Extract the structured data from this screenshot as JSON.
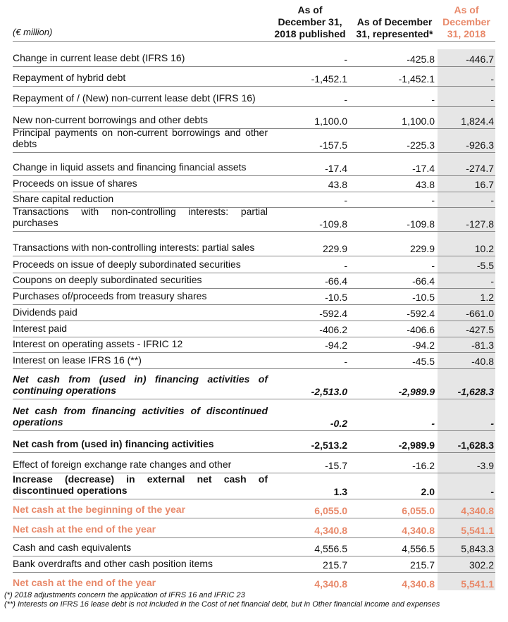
{
  "header": {
    "unit": "(€ million)",
    "col1": [
      "As of",
      "December 31,",
      "2018 published"
    ],
    "col2": [
      "As of December",
      "31, represented*"
    ],
    "col3": [
      "As of",
      "December",
      "31, 2018"
    ]
  },
  "rows": [
    {
      "label": "Change in current lease debt (IFRS 16)",
      "v1": "-",
      "v2": "-425.8",
      "v3": "-446.7"
    },
    {
      "label": "Repayment of hybrid debt",
      "v1": "-1,452.1",
      "v2": "-1,452.1",
      "v3": "-"
    },
    {
      "label": "Repayment of / (New) non-current lease debt (IFRS 16)",
      "v1": "-",
      "v2": "-",
      "v3": "-"
    },
    {
      "label": "New non-current borrowings and other debts",
      "v1": "1,100.0",
      "v2": "1,100.0",
      "v3": "1,824.4"
    },
    {
      "label": "Principal payments on non-current borrowings and other debts",
      "v1": "-157.5",
      "v2": "-225.3",
      "v3": "-926.3"
    },
    {
      "label": "Change in liquid assets and financing financial assets",
      "v1": "-17.4",
      "v2": "-17.4",
      "v3": "-274.7"
    },
    {
      "label": "Proceeds on issue of shares",
      "v1": "43.8",
      "v2": "43.8",
      "v3": "16.7"
    },
    {
      "label": "Share capital reduction",
      "v1": "-",
      "v2": "-",
      "v3": "-"
    },
    {
      "label": "Transactions with non-controlling interests: partial purchases",
      "v1": "-109.8",
      "v2": "-109.8",
      "v3": "-127.8"
    },
    {
      "label": "Transactions with non-controlling interests: partial sales",
      "v1": "229.9",
      "v2": "229.9",
      "v3": "10.2"
    },
    {
      "label": "Proceeds on issue of deeply subordinated securities",
      "v1": "-",
      "v2": "-",
      "v3": "-5.5"
    },
    {
      "label": "Coupons on deeply subordinated securities",
      "v1": "-66.4",
      "v2": "-66.4",
      "v3": "-"
    },
    {
      "label": "Purchases of/proceeds from treasury shares",
      "v1": "-10.5",
      "v2": "-10.5",
      "v3": "1.2"
    },
    {
      "label": "Dividends paid",
      "v1": "-592.4",
      "v2": "-592.4",
      "v3": "-661.0"
    },
    {
      "label": "Interest paid",
      "v1": "-406.2",
      "v2": "-406.6",
      "v3": "-427.5"
    },
    {
      "label": "Interest on operating assets - IFRIC 12",
      "v1": "-94.2",
      "v2": "-94.2",
      "v3": "-81.3"
    },
    {
      "label": "Interest on lease IFRS 16 (**)",
      "v1": "-",
      "v2": "-45.5",
      "v3": "-40.8"
    },
    {
      "label": "Net cash from (used in) financing activities of continuing operations",
      "v1": "-2,513.0",
      "v2": "-2,989.9",
      "v3": "-1,628.3"
    },
    {
      "label": "Net cash from financing activities of discontinued operations",
      "v1": "-0.2",
      "v2": "-",
      "v3": "-"
    },
    {
      "label": "Net cash from (used in) financing activities",
      "v1": "-2,513.2",
      "v2": "-2,989.9",
      "v3": "-1,628.3"
    },
    {
      "label": "Effect of foreign exchange rate changes and other",
      "v1": "-15.7",
      "v2": "-16.2",
      "v3": "-3.9"
    },
    {
      "label": "Increase (decrease) in external net cash of discontinued operations",
      "v1": "1.3",
      "v2": "2.0",
      "v3": "-"
    },
    {
      "label": "Net cash at the beginning of the year",
      "v1": "6,055.0",
      "v2": "6,055.0",
      "v3": "4,340.8"
    },
    {
      "label": "Net cash at the end of the year",
      "v1": "4,340.8",
      "v2": "4,340.8",
      "v3": "5,541.1"
    },
    {
      "label": "Cash and cash equivalents",
      "v1": "4,556.5",
      "v2": "4,556.5",
      "v3": "5,843.3"
    },
    {
      "label": "Bank overdrafts and other cash position items",
      "v1": "215.7",
      "v2": "215.7",
      "v3": "302.2"
    },
    {
      "label": "Net cash at the end of the year",
      "v1": "4,340.8",
      "v2": "4,340.8",
      "v3": "5,541.1"
    }
  ],
  "footnotes": [
    "(*) 2018 adjustments concern the application of IFRS 16 and IFRIC 23",
    "(**) Interests on IFRS 16 lease debt is not included in the Cost of net financial debt, but in Other financial income and expenses"
  ],
  "colors": {
    "accent": "#e8896a",
    "shade": "#e6e6e6"
  }
}
